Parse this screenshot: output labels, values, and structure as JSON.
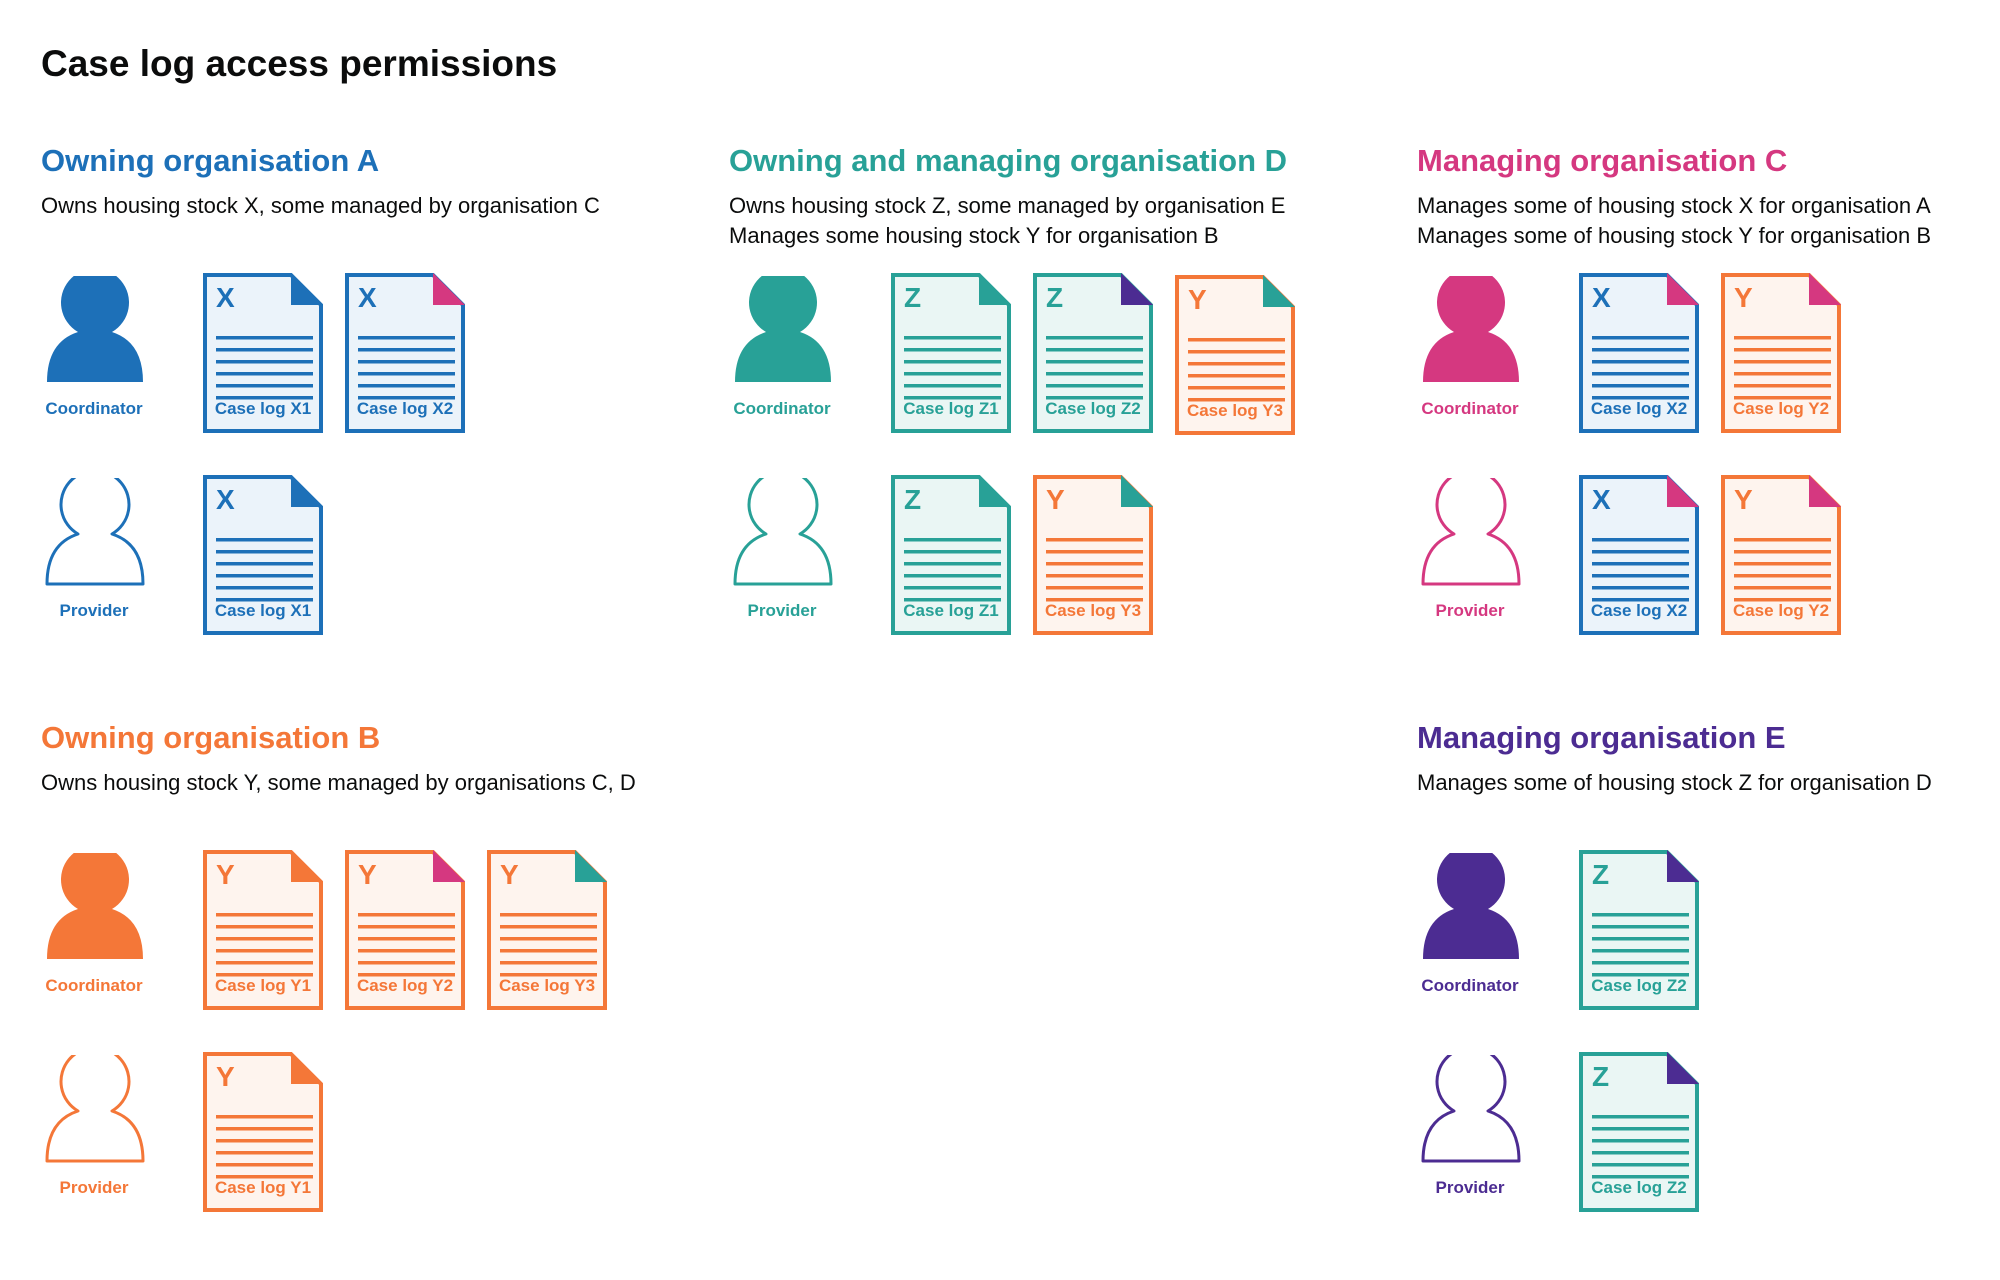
{
  "title": "Case log access permissions",
  "colors": {
    "blue": "#1d70b8",
    "teal": "#28a197",
    "pink": "#d53880",
    "orange": "#f47738",
    "purple": "#4c2c92",
    "tints": {
      "blue": "#ebf3fa",
      "teal": "#eaf6f4",
      "orange": "#fef4ee"
    }
  },
  "sections": [
    {
      "id": "owning-organisation-a",
      "heading": "Owning organisation A",
      "color": "blue",
      "description": [
        "Owns housing stock X, some managed by organisation C"
      ],
      "rows": [
        {
          "role": "Coordinator",
          "icon": "person-filled-icon",
          "docs": [
            {
              "letter": "X",
              "label": "Case log X1",
              "color": "blue",
              "corner": "blue"
            },
            {
              "letter": "X",
              "label": "Case log X2",
              "color": "blue",
              "corner": "pink"
            }
          ]
        },
        {
          "role": "Provider",
          "icon": "person-outline-icon",
          "docs": [
            {
              "letter": "X",
              "label": "Case log X1",
              "color": "blue",
              "corner": "blue"
            }
          ]
        }
      ]
    },
    {
      "id": "owning-and-managing-organisation-d",
      "heading": "Owning and managing organisation D",
      "color": "teal",
      "description": [
        "Owns housing stock Z, some managed by organisation E",
        "Manages some housing stock Y for organisation B"
      ],
      "rows": [
        {
          "role": "Coordinator",
          "icon": "person-filled-icon",
          "docs": [
            {
              "letter": "Z",
              "label": "Case log Z1",
              "color": "teal",
              "corner": "teal"
            },
            {
              "letter": "Z",
              "label": "Case log Z2",
              "color": "teal",
              "corner": "purple"
            },
            {
              "letter": "Y",
              "label": "Case log Y3",
              "color": "orange",
              "corner": "teal"
            }
          ]
        },
        {
          "role": "Provider",
          "icon": "person-outline-icon",
          "docs": [
            {
              "letter": "Z",
              "label": "Case log Z1",
              "color": "teal",
              "corner": "teal"
            },
            {
              "letter": "Y",
              "label": "Case log Y3",
              "color": "orange",
              "corner": "teal"
            }
          ]
        }
      ]
    },
    {
      "id": "managing-organisation-c",
      "heading": "Managing organisation C",
      "color": "pink",
      "description": [
        "Manages some of housing stock X for organisation A",
        "Manages some of housing stock Y for organisation B"
      ],
      "rows": [
        {
          "role": "Coordinator",
          "icon": "person-filled-icon",
          "docs": [
            {
              "letter": "X",
              "label": "Case log X2",
              "color": "blue",
              "corner": "pink"
            },
            {
              "letter": "Y",
              "label": "Case log Y2",
              "color": "orange",
              "corner": "pink"
            }
          ]
        },
        {
          "role": "Provider",
          "icon": "person-outline-icon",
          "docs": [
            {
              "letter": "X",
              "label": "Case log X2",
              "color": "blue",
              "corner": "pink"
            },
            {
              "letter": "Y",
              "label": "Case log Y2",
              "color": "orange",
              "corner": "pink"
            }
          ]
        }
      ]
    },
    {
      "id": "owning-organisation-b",
      "heading": "Owning organisation B",
      "color": "orange",
      "description": [
        "Owns housing stock Y, some managed by organisations C, D"
      ],
      "rows": [
        {
          "role": "Coordinator",
          "icon": "person-filled-icon",
          "docs": [
            {
              "letter": "Y",
              "label": "Case log Y1",
              "color": "orange",
              "corner": "orange"
            },
            {
              "letter": "Y",
              "label": "Case log Y2",
              "color": "orange",
              "corner": "pink"
            },
            {
              "letter": "Y",
              "label": "Case log Y3",
              "color": "orange",
              "corner": "teal"
            }
          ]
        },
        {
          "role": "Provider",
          "icon": "person-outline-icon",
          "docs": [
            {
              "letter": "Y",
              "label": "Case log Y1",
              "color": "orange",
              "corner": "orange"
            }
          ]
        }
      ]
    },
    {
      "id": "managing-organisation-e",
      "heading": "Managing organisation E",
      "color": "purple",
      "description": [
        "Manages some of housing stock Z for organisation D"
      ],
      "rows": [
        {
          "role": "Coordinator",
          "icon": "person-filled-icon",
          "docs": [
            {
              "letter": "Z",
              "label": "Case log Z2",
              "color": "teal",
              "corner": "purple"
            }
          ]
        },
        {
          "role": "Provider",
          "icon": "person-outline-icon",
          "docs": [
            {
              "letter": "Z",
              "label": "Case log Z2",
              "color": "teal",
              "corner": "purple"
            }
          ]
        }
      ]
    }
  ]
}
